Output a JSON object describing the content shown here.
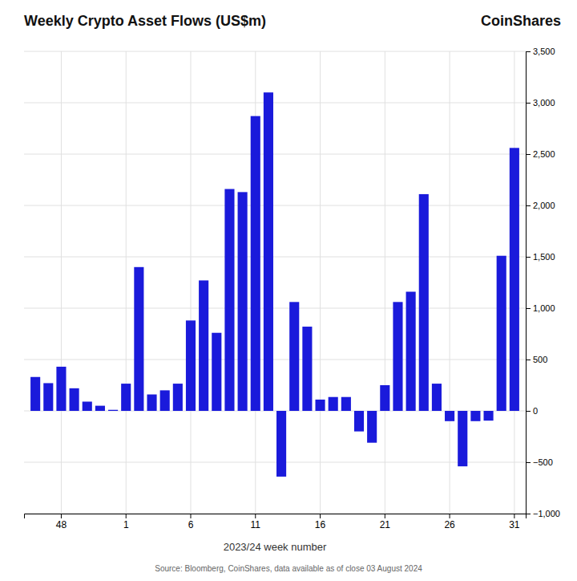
{
  "chart_data": {
    "type": "bar",
    "title": "Weekly Crypto Asset Flows (US$m)",
    "x_label": "2023/24 week number",
    "annotations": [
      "CoinShares",
      "Source: Bloomberg, CoinShares, data available as of close 03 August 2024"
    ],
    "categories": [
      null,
      null,
      "48",
      null,
      null,
      null,
      null,
      "1",
      null,
      null,
      null,
      null,
      "6",
      null,
      null,
      null,
      null,
      "11",
      null,
      null,
      null,
      null,
      "16",
      null,
      null,
      null,
      null,
      "21",
      null,
      null,
      null,
      null,
      "26",
      null,
      null,
      null,
      null,
      "31"
    ],
    "values": [
      330,
      270,
      430,
      220,
      90,
      50,
      10,
      265,
      1400,
      160,
      200,
      265,
      880,
      1270,
      760,
      2160,
      2130,
      2870,
      3100,
      -640,
      1060,
      820,
      110,
      135,
      135,
      -200,
      -310,
      250,
      1060,
      1160,
      2110,
      265,
      -100,
      -540,
      -100,
      -95,
      1510,
      2560
    ],
    "color": "#1a1adb",
    "ylim": [
      -1000,
      3500
    ],
    "yticks": [
      {
        "value": -1000,
        "label": "−1,000"
      },
      {
        "value": -500,
        "label": "−500"
      },
      0,
      500,
      {
        "value": 1000,
        "label": "1,000"
      },
      {
        "value": 1500,
        "label": "1,500"
      },
      {
        "value": 2000,
        "label": "2,000"
      },
      {
        "value": 2500,
        "label": "2,500"
      },
      {
        "value": 3000,
        "label": "3,000"
      },
      {
        "value": 3500,
        "label": "3,500"
      }
    ],
    "grid": true
  }
}
